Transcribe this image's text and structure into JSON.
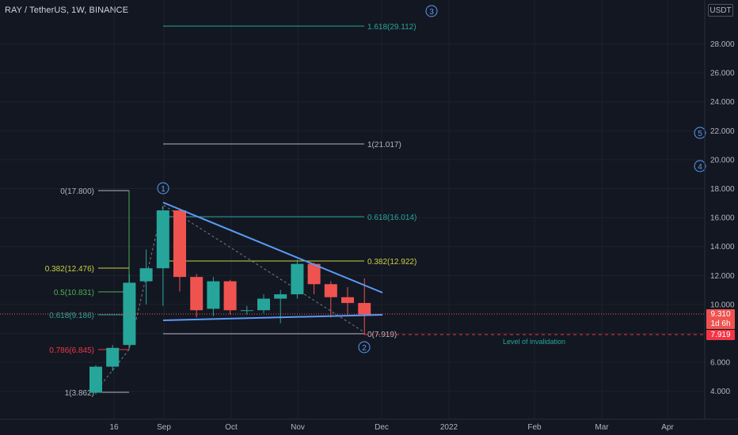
{
  "header": {
    "title": "RAY / TetherUS, 1W, BINANCE",
    "unit": "USDT"
  },
  "colors": {
    "up": "#26a69a",
    "down": "#ef5350",
    "trend": "#5b9cf6",
    "bg": "#131722",
    "fib_green": "#4caf50",
    "fib_yellow": "#c9d142",
    "fib_red": "#f23645",
    "text": "#b2b5be"
  },
  "y_axis": {
    "ticks": [
      "4.000",
      "6.000",
      "8.000",
      "10.000",
      "12.000",
      "14.000",
      "16.000",
      "18.000",
      "20.000",
      "22.000",
      "24.000",
      "26.000",
      "28.000"
    ]
  },
  "x_axis": {
    "ticks": [
      "16",
      "Sep",
      "Oct",
      "Nov",
      "Dec",
      "2022",
      "Feb",
      "Mar",
      "Apr"
    ]
  },
  "price_tags": {
    "current": "9.310",
    "countdown": "1d 6h",
    "invalidation": "7.919"
  },
  "fib_left": [
    {
      "label": "0(17.800)",
      "value": 17.8
    },
    {
      "label": "0.382(12.476)",
      "value": 12.476
    },
    {
      "label": "0.5(10.831)",
      "value": 10.831
    },
    {
      "label": "0.618(9.186)",
      "value": 9.186
    },
    {
      "label": "0.786(6.845)",
      "value": 6.845
    },
    {
      "label": "1(3.862)",
      "value": 3.862
    }
  ],
  "fib_right": [
    {
      "label": "1.618(29.112)",
      "value": 29.112
    },
    {
      "label": "1(21.017)",
      "value": 21.017
    },
    {
      "label": "0.618(16.014)",
      "value": 16.014
    },
    {
      "label": "0.382(12.922)",
      "value": 12.922
    },
    {
      "label": "0(7.919)",
      "value": 7.919
    }
  ],
  "wave_labels": [
    "1",
    "2",
    "3",
    "4",
    "5"
  ],
  "annotations": {
    "invalidation": "Level of invalidation"
  },
  "candles": [
    {
      "o": 3.9,
      "h": 5.8,
      "l": 3.8,
      "c": 5.7
    },
    {
      "o": 5.7,
      "h": 7.2,
      "l": 5.4,
      "c": 7.0
    },
    {
      "o": 7.2,
      "h": 12.1,
      "l": 7.0,
      "c": 11.5
    },
    {
      "o": 11.6,
      "h": 13.8,
      "l": 10.0,
      "c": 12.5
    },
    {
      "o": 12.5,
      "h": 16.8,
      "l": 9.9,
      "c": 16.5
    },
    {
      "o": 16.5,
      "h": 16.6,
      "l": 10.9,
      "c": 11.9
    },
    {
      "o": 11.9,
      "h": 12.1,
      "l": 9.1,
      "c": 9.6
    },
    {
      "o": 9.7,
      "h": 11.9,
      "l": 9.2,
      "c": 11.6
    },
    {
      "o": 11.6,
      "h": 11.7,
      "l": 9.3,
      "c": 9.6
    },
    {
      "o": 9.6,
      "h": 9.9,
      "l": 9.3,
      "c": 9.6
    },
    {
      "o": 9.6,
      "h": 10.7,
      "l": 9.4,
      "c": 10.4
    },
    {
      "o": 10.4,
      "h": 11.0,
      "l": 8.7,
      "c": 10.7
    },
    {
      "o": 10.7,
      "h": 13.1,
      "l": 10.4,
      "c": 12.8
    },
    {
      "o": 12.8,
      "h": 12.9,
      "l": 10.7,
      "c": 11.4
    },
    {
      "o": 11.4,
      "h": 11.6,
      "l": 9.1,
      "c": 10.5
    },
    {
      "o": 10.5,
      "h": 11.2,
      "l": 9.3,
      "c": 10.1
    },
    {
      "o": 10.1,
      "h": 11.8,
      "l": 7.9,
      "c": 9.31
    }
  ]
}
